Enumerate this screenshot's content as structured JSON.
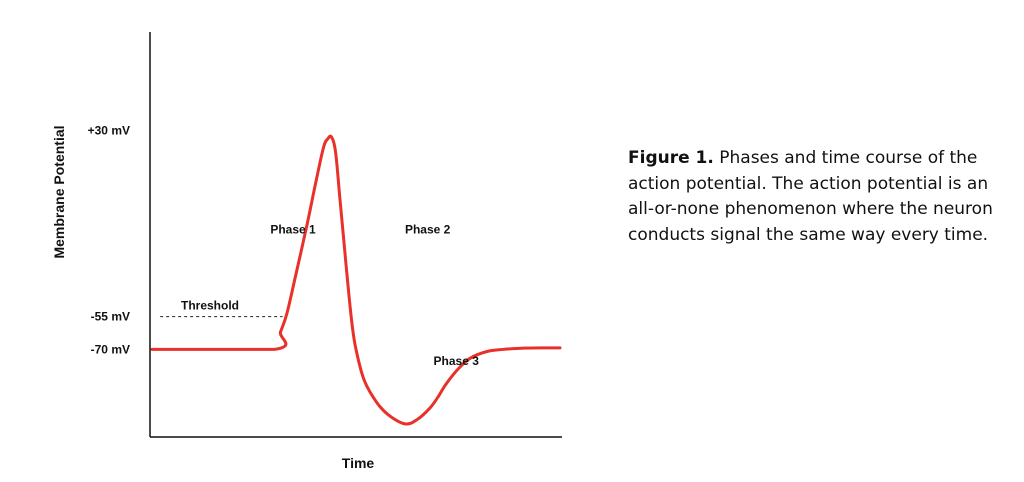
{
  "chart_data": {
    "type": "line",
    "title": "",
    "xlabel": "Time",
    "ylabel": "Membrane Potential",
    "y_ticks": [
      {
        "value": 30,
        "label": "+30 mV"
      },
      {
        "value": -55,
        "label": "-55 mV"
      },
      {
        "value": -70,
        "label": "-70 mV"
      }
    ],
    "ylim": [
      -110,
      75
    ],
    "xlim": [
      0,
      1
    ],
    "grid": false,
    "threshold": {
      "value": -55,
      "label": "Threshold",
      "x_start": 0.02,
      "x_end": 0.32
    },
    "series": [
      {
        "color": "#e8312a",
        "x": [
          0.0,
          0.3,
          0.315,
          0.33,
          0.35,
          0.38,
          0.4,
          0.42,
          0.43,
          0.44,
          0.45,
          0.46,
          0.47,
          0.48,
          0.49,
          0.5,
          0.52,
          0.55,
          0.58,
          0.62,
          0.65,
          0.68,
          0.7,
          0.72,
          0.75,
          0.78,
          0.82,
          0.86,
          0.9,
          0.95,
          1.0
        ],
        "y": [
          -70,
          -70,
          -62,
          -54,
          -38,
          -13,
          5,
          22,
          26,
          27,
          20,
          0,
          -20,
          -40,
          -58,
          -70,
          -84,
          -94,
          -100,
          -104,
          -102,
          -97,
          -92,
          -86,
          -79,
          -74,
          -71,
          -70,
          -69.5,
          -69.3,
          -69.3
        ]
      }
    ],
    "annotations": [
      {
        "text": "Phase 1",
        "x": 0.29,
        "y": -17
      },
      {
        "text": "Phase 2",
        "x": 0.62,
        "y": -17
      },
      {
        "text": "Phase 3",
        "x": 0.69,
        "y": -77
      }
    ]
  },
  "caption": {
    "label": "Figure 1.",
    "text": " Phases and time course of the action potential. The action potential is an all-or-none phenomenon where the neuron conducts signal the same way every time."
  }
}
